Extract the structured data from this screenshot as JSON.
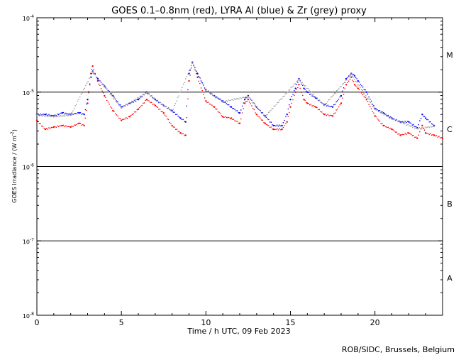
{
  "chart_data": {
    "type": "scatter",
    "title": "GOES 0.1–0.8nm (red), LYRA Al (blue) & Zr (grey) proxy",
    "xlabel": "Time / h UTC, 09 Feb 2023",
    "ylabel_prefix": "GOES Irradiance / (W m",
    "ylabel_exp": "-2",
    "ylabel_suffix": ")",
    "xlim": [
      0,
      24
    ],
    "ylim_log10": [
      -8,
      -4
    ],
    "x_ticks": [
      {
        "value": 0,
        "label": "0"
      },
      {
        "value": 5,
        "label": "5"
      },
      {
        "value": 10,
        "label": "10"
      },
      {
        "value": 15,
        "label": "15"
      },
      {
        "value": 20,
        "label": "20"
      }
    ],
    "y_ticks": [
      {
        "exp": -8,
        "label": "10",
        "sup": "-8"
      },
      {
        "exp": -7,
        "label": "10",
        "sup": "-7"
      },
      {
        "exp": -6,
        "label": "10",
        "sup": "-6"
      },
      {
        "exp": -5,
        "label": "10",
        "sup": "-5"
      },
      {
        "exp": -4,
        "label": "10",
        "sup": "-4"
      }
    ],
    "class_lines_log10": [
      -5,
      -6,
      -7
    ],
    "class_labels": [
      {
        "label": "M",
        "exp": -4.5
      },
      {
        "label": "C",
        "exp": -5.5
      },
      {
        "label": "B",
        "exp": -6.5
      },
      {
        "label": "A",
        "exp": -7.5
      }
    ],
    "footer": "ROB/SIDC, Brussels, Belgium",
    "series": [
      {
        "name": "GOES 0.1–0.8nm",
        "color": "#ff0000",
        "x": [
          0,
          0.5,
          1.0,
          1.5,
          2.0,
          2.5,
          2.8,
          3.0,
          3.2,
          3.3,
          3.6,
          4.0,
          4.5,
          5.0,
          5.5,
          6.0,
          6.5,
          7.0,
          7.5,
          8.0,
          8.5,
          8.8,
          9.0,
          9.2,
          9.5,
          10.0,
          10.5,
          11.0,
          11.5,
          12.0,
          12.3,
          12.5,
          13.0,
          13.5,
          14.0,
          14.5,
          14.8,
          15.0,
          15.3,
          15.5,
          15.8,
          16.0,
          16.5,
          17.0,
          17.5,
          18.0,
          18.3,
          18.6,
          18.8,
          19.0,
          19.5,
          20.0,
          20.5,
          21.0,
          21.5,
          22.0,
          22.5,
          22.8,
          23.0,
          23.5,
          24.0
        ],
        "log10": [
          -5.38,
          -5.5,
          -5.47,
          -5.45,
          -5.47,
          -5.42,
          -5.45,
          -5.15,
          -4.75,
          -4.65,
          -4.85,
          -5.05,
          -5.25,
          -5.38,
          -5.33,
          -5.23,
          -5.1,
          -5.18,
          -5.28,
          -5.45,
          -5.55,
          -5.58,
          -4.85,
          -4.6,
          -4.8,
          -5.12,
          -5.2,
          -5.33,
          -5.35,
          -5.42,
          -5.15,
          -5.1,
          -5.3,
          -5.42,
          -5.5,
          -5.5,
          -5.4,
          -5.2,
          -5.0,
          -4.9,
          -5.1,
          -5.15,
          -5.2,
          -5.3,
          -5.32,
          -5.15,
          -4.9,
          -4.8,
          -4.9,
          -4.95,
          -5.1,
          -5.32,
          -5.45,
          -5.5,
          -5.58,
          -5.55,
          -5.62,
          -5.45,
          -5.55,
          -5.58,
          -5.62
        ]
      },
      {
        "name": "LYRA Al proxy",
        "color": "#0000ff",
        "x": [
          0,
          0.5,
          1.0,
          1.5,
          2.0,
          2.5,
          2.8,
          3.0,
          3.2,
          3.3,
          3.6,
          4.0,
          4.5,
          5.0,
          5.5,
          6.0,
          6.5,
          7.0,
          7.5,
          8.0,
          8.5,
          8.8,
          9.0,
          9.2,
          9.5,
          10.0,
          10.5,
          11.0,
          11.5,
          12.0,
          12.3,
          12.5,
          13.0,
          13.5,
          14.0,
          14.5,
          14.8,
          15.0,
          15.3,
          15.5,
          15.8,
          16.0,
          16.5,
          17.0,
          17.5,
          18.0,
          18.3,
          18.6,
          18.8,
          19.0,
          19.5,
          20.0,
          20.5,
          21.0,
          21.5,
          22.0,
          22.5,
          22.8,
          23.0,
          23.5
        ],
        "log10": [
          -5.3,
          -5.3,
          -5.32,
          -5.28,
          -5.3,
          -5.28,
          -5.3,
          -5.1,
          -4.8,
          -4.72,
          -4.82,
          -4.92,
          -5.05,
          -5.2,
          -5.15,
          -5.1,
          -5.0,
          -5.1,
          -5.18,
          -5.25,
          -5.35,
          -5.4,
          -4.75,
          -4.6,
          -4.75,
          -4.97,
          -5.05,
          -5.12,
          -5.2,
          -5.28,
          -5.1,
          -5.05,
          -5.2,
          -5.32,
          -5.45,
          -5.45,
          -5.3,
          -5.1,
          -4.95,
          -4.82,
          -4.95,
          -5.0,
          -5.08,
          -5.17,
          -5.2,
          -5.05,
          -4.82,
          -4.75,
          -4.78,
          -4.85,
          -5.0,
          -5.22,
          -5.28,
          -5.35,
          -5.4,
          -5.4,
          -5.48,
          -5.3,
          -5.35,
          -5.45
        ]
      },
      {
        "name": "LYRA Zr proxy",
        "color": "#9a9a9a",
        "x": [
          0,
          1.0,
          2.0,
          3.3,
          4.0,
          5.0,
          6.5,
          8.0,
          9.2,
          10.0,
          11.0,
          12.5,
          13.5,
          15.5,
          17.0,
          18.6,
          20.0,
          21.0,
          22.5,
          23.5
        ],
        "log10": [
          -5.31,
          -5.33,
          -5.31,
          -4.73,
          -4.93,
          -5.21,
          -5.01,
          -5.26,
          -4.61,
          -4.98,
          -5.13,
          -5.06,
          -5.33,
          -4.83,
          -5.18,
          -4.76,
          -5.23,
          -5.36,
          -5.49,
          -5.46
        ]
      }
    ]
  }
}
